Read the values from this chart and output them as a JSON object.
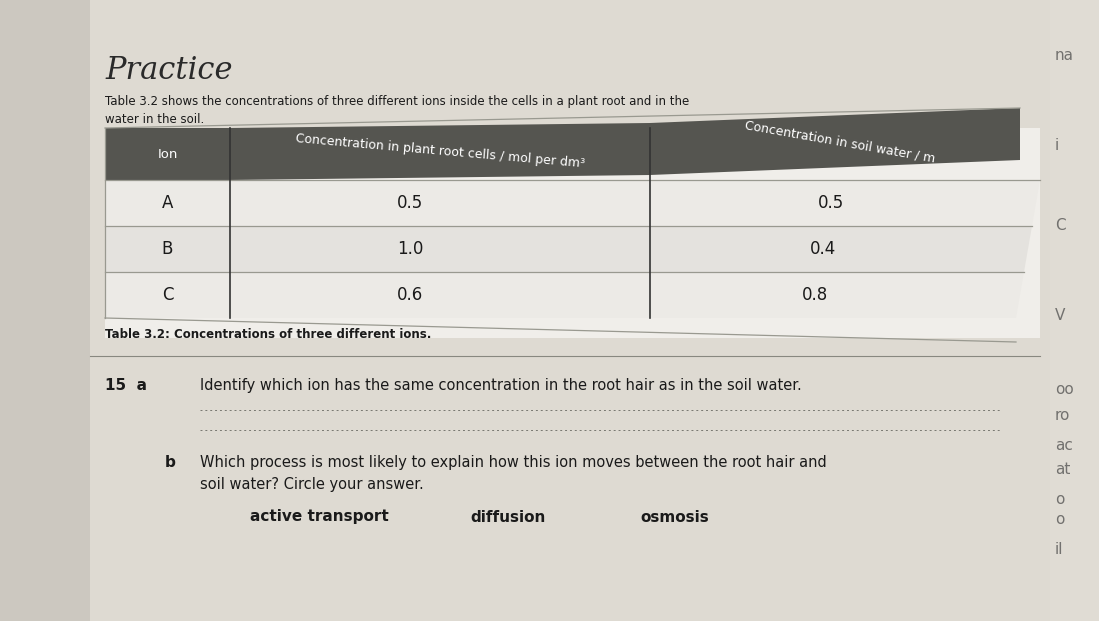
{
  "title": "Practice",
  "subtitle_line1": "Table 3.2 shows the concentrations of three different ions inside the cells in a plant root and in the",
  "subtitle_line2": "water in the soil.",
  "diagonal_text": "of three different ions inside the cells in a plant root and in the",
  "table_header_col1": "Ion",
  "table_header_col2": "Concentration in plant root cells / mol per dm³",
  "table_header_col3": "Concentration in soil water / m",
  "ions": [
    "A",
    "B",
    "C"
  ],
  "plant_conc": [
    "0.5",
    "1.0",
    "0.6"
  ],
  "soil_conc": [
    "0.5",
    "0.4",
    "0.8"
  ],
  "table_caption": "Table 3.2: Concentrations of three different ions.",
  "q15a_label": "15  a",
  "q15a_text": "Identify which ion has the same concentration in the root hair as in the soil water.",
  "q15b_label": "b",
  "q15b_line1": "Which process is most likely to explain how this ion moves between the root hair and",
  "q15b_line2": "soil water? Circle your answer.",
  "answer_options": [
    "active transport",
    "diffusion",
    "osmosis"
  ],
  "bg_color": "#ccc8c0",
  "table_bg": "#f2f0ec",
  "table_header_bg": "#555550",
  "table_header_text": "#ffffff",
  "table_row_bg_a": "#eceae6",
  "table_row_bg_b": "#e4e2de",
  "table_border_color": "#999990",
  "text_color": "#1a1a1a",
  "dotted_line_color": "#777770",
  "right_page_bg": "#e8e4dc",
  "right_page_text": "#444",
  "title_color": "#2a2a2a"
}
